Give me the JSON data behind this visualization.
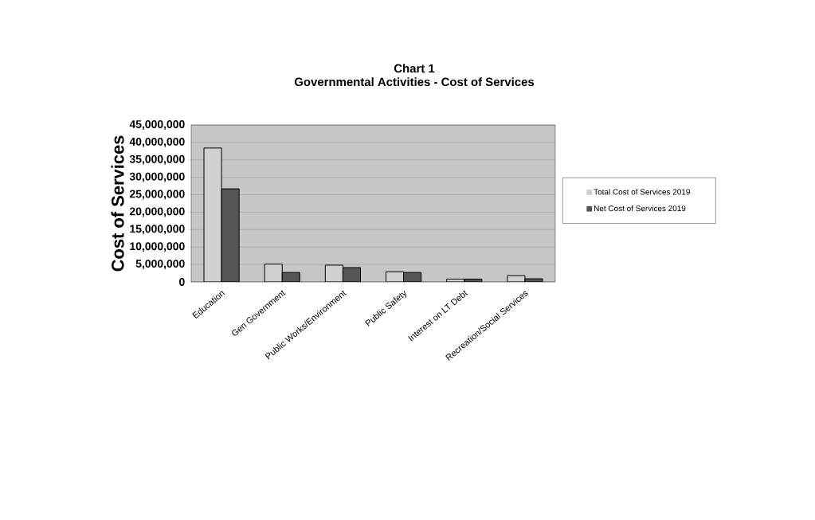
{
  "chart_data": {
    "type": "bar",
    "title": "Chart 1\nGovernmental Activities - Cost of Services",
    "ylabel": "Cost of Services",
    "categories": [
      "Education",
      "Gen Government",
      "Public Works/Environment",
      "Public Safety",
      "Interest on LT Debt",
      "Recreation/Social Services"
    ],
    "series": [
      {
        "name": "Total Cost of Services 2019",
        "color": "#d0d0d0",
        "values": [
          38400000,
          5100000,
          4800000,
          2900000,
          800000,
          1800000
        ]
      },
      {
        "name": "Net Cost of Services 2019",
        "color": "#555555",
        "values": [
          26700000,
          2700000,
          4100000,
          2700000,
          800000,
          900000
        ]
      }
    ],
    "ylim": [
      0,
      45000000
    ],
    "yticks": [
      {
        "value": 0,
        "label": "0"
      },
      {
        "value": 5000000,
        "label": "5,000,000"
      },
      {
        "value": 10000000,
        "label": "10,000,000"
      },
      {
        "value": 15000000,
        "label": "15,000,000"
      },
      {
        "value": 20000000,
        "label": "20,000,000"
      },
      {
        "value": 25000000,
        "label": "25,000,000"
      },
      {
        "value": 30000000,
        "label": "30,000,000"
      },
      {
        "value": 35000000,
        "label": "35,000,000"
      },
      {
        "value": 40000000,
        "label": "40,000,000"
      },
      {
        "value": 45000000,
        "label": "45,000,000"
      }
    ],
    "grid": "y",
    "legend": "right"
  }
}
